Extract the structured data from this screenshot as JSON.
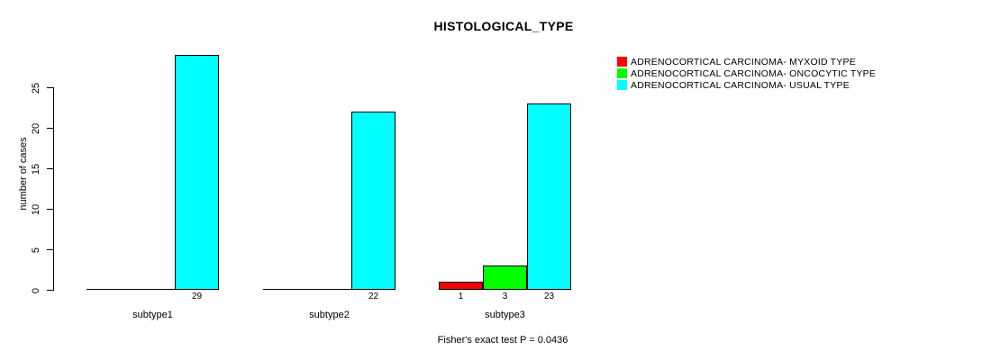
{
  "title": "HISTOLOGICAL_TYPE",
  "footnote": "Fisher's exact test P = 0.0436",
  "y_axis": {
    "label": "number of cases",
    "ticks": [
      0,
      5,
      10,
      15,
      20,
      25
    ]
  },
  "colors": {
    "background": "#ffffff",
    "axis": "#000000",
    "text": "#000000"
  },
  "chart_data": {
    "type": "bar",
    "title": "HISTOLOGICAL_TYPE",
    "xlabel": "",
    "ylabel": "number of cases",
    "ylim": [
      0,
      29
    ],
    "grid": false,
    "legend_position": "right",
    "categories": [
      "subtype1",
      "subtype2",
      "subtype3"
    ],
    "series": [
      {
        "name": "ADRENOCORTICAL CARCINOMA- MYXOID TYPE",
        "color": "#ff0000",
        "values": [
          0,
          0,
          1
        ]
      },
      {
        "name": "ADRENOCORTICAL CARCINOMA- ONCOCYTIC TYPE",
        "color": "#00ff00",
        "values": [
          0,
          0,
          3
        ]
      },
      {
        "name": "ADRENOCORTICAL CARCINOMA- USUAL TYPE",
        "color": "#00ffff",
        "values": [
          29,
          22,
          23
        ]
      }
    ],
    "bar_labels_shown": [
      "29",
      "22",
      "1",
      "3",
      "23"
    ]
  }
}
